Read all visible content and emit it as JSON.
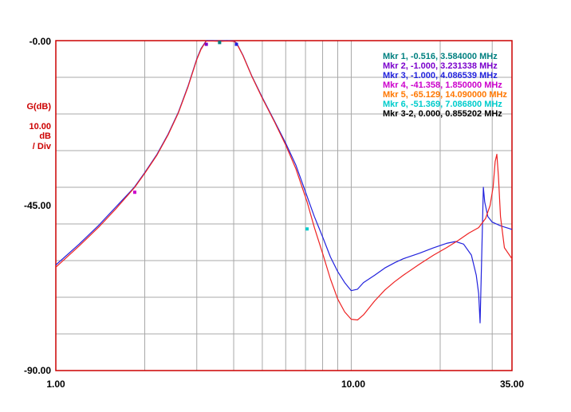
{
  "chart_data": {
    "type": "line",
    "x_scale": "log",
    "xlim": [
      1.0,
      35.0
    ],
    "ylim": [
      -90.0,
      0.0
    ],
    "x_ticks": [
      "1.00",
      "10.00",
      "35.00"
    ],
    "y_ticks": [
      "-0.00",
      "-45.00",
      "-90.00"
    ],
    "ylabel_lines": [
      "G(dB)",
      "10.00",
      "dB",
      "/ Div"
    ],
    "grid": true,
    "axis_color": "#cc0000",
    "series": [
      {
        "color": "#2222dd",
        "points": [
          [
            1.0,
            -61.2
          ],
          [
            1.2,
            -55.5
          ],
          [
            1.4,
            -50.3
          ],
          [
            1.6,
            -45.3
          ],
          [
            1.8,
            -40.9
          ],
          [
            1.85,
            -39.8
          ],
          [
            2.0,
            -36.0
          ],
          [
            2.2,
            -31.0
          ],
          [
            2.4,
            -25.5
          ],
          [
            2.6,
            -19.5
          ],
          [
            2.8,
            -12.5
          ],
          [
            3.0,
            -5.0
          ],
          [
            3.1,
            -2.2
          ],
          [
            3.2,
            -0.5
          ],
          [
            3.23,
            0.0
          ],
          [
            3.4,
            0.0
          ],
          [
            3.58,
            -0.1
          ],
          [
            3.8,
            0.0
          ],
          [
            4.0,
            -0.1
          ],
          [
            4.09,
            -0.6
          ],
          [
            4.3,
            -4.0
          ],
          [
            4.6,
            -9.5
          ],
          [
            5.0,
            -15.5
          ],
          [
            5.5,
            -22.0
          ],
          [
            6.0,
            -28.0
          ],
          [
            6.5,
            -34.0
          ],
          [
            7.09,
            -42.5
          ],
          [
            7.5,
            -48.0
          ],
          [
            8.0,
            -53.5
          ],
          [
            8.5,
            -59.0
          ],
          [
            9.0,
            -63.0
          ],
          [
            9.5,
            -66.0
          ],
          [
            10.0,
            -68.2
          ],
          [
            10.5,
            -67.8
          ],
          [
            11.0,
            -66.0
          ],
          [
            12.0,
            -64.0
          ],
          [
            13.0,
            -62.0
          ],
          [
            14.09,
            -60.5
          ],
          [
            15.0,
            -59.5
          ],
          [
            17.0,
            -58.0
          ],
          [
            19.0,
            -56.5
          ],
          [
            21.0,
            -55.3
          ],
          [
            22.5,
            -54.8
          ],
          [
            24.0,
            -55.5
          ],
          [
            25.5,
            -58.5
          ],
          [
            26.5,
            -64.0
          ],
          [
            27.0,
            -69.0
          ],
          [
            27.3,
            -77.0
          ],
          [
            27.6,
            -61.0
          ],
          [
            28.0,
            -40.0
          ],
          [
            28.3,
            -44.0
          ],
          [
            29.0,
            -48.0
          ],
          [
            30.0,
            -49.5
          ],
          [
            32.0,
            -50.5
          ],
          [
            35.0,
            -51.5
          ]
        ]
      },
      {
        "color": "#ee2222",
        "points": [
          [
            1.0,
            -61.8
          ],
          [
            1.2,
            -56.0
          ],
          [
            1.4,
            -50.8
          ],
          [
            1.6,
            -45.8
          ],
          [
            1.85,
            -40.0
          ],
          [
            2.0,
            -36.2
          ],
          [
            2.2,
            -31.2
          ],
          [
            2.4,
            -25.7
          ],
          [
            2.6,
            -19.7
          ],
          [
            2.8,
            -12.7
          ],
          [
            3.0,
            -5.2
          ],
          [
            3.1,
            -2.4
          ],
          [
            3.2,
            -0.6
          ],
          [
            3.23,
            -0.1
          ],
          [
            3.4,
            -0.1
          ],
          [
            3.6,
            -0.2
          ],
          [
            3.8,
            -0.1
          ],
          [
            4.0,
            -0.2
          ],
          [
            4.09,
            -0.7
          ],
          [
            4.3,
            -4.1
          ],
          [
            4.6,
            -9.6
          ],
          [
            5.0,
            -15.7
          ],
          [
            5.5,
            -22.2
          ],
          [
            6.0,
            -28.5
          ],
          [
            6.5,
            -35.0
          ],
          [
            7.09,
            -44.0
          ],
          [
            7.5,
            -51.0
          ],
          [
            8.0,
            -58.0
          ],
          [
            8.5,
            -65.0
          ],
          [
            9.0,
            -70.5
          ],
          [
            9.5,
            -74.0
          ],
          [
            10.0,
            -76.0
          ],
          [
            10.5,
            -76.2
          ],
          [
            11.0,
            -74.8
          ],
          [
            12.0,
            -71.0
          ],
          [
            13.0,
            -68.0
          ],
          [
            14.0,
            -65.8
          ],
          [
            15.0,
            -64.0
          ],
          [
            17.0,
            -61.0
          ],
          [
            19.0,
            -58.5
          ],
          [
            21.0,
            -56.5
          ],
          [
            23.0,
            -54.5
          ],
          [
            25.0,
            -52.5
          ],
          [
            27.0,
            -51.0
          ],
          [
            28.5,
            -48.5
          ],
          [
            29.5,
            -45.0
          ],
          [
            30.2,
            -40.0
          ],
          [
            30.7,
            -33.0
          ],
          [
            31.1,
            -31.0
          ],
          [
            31.5,
            -37.0
          ],
          [
            32.0,
            -48.0
          ],
          [
            33.0,
            -56.5
          ],
          [
            35.0,
            -59.5
          ]
        ]
      }
    ],
    "marker_points": [
      {
        "x": 3.584,
        "y": -0.516,
        "color": "#008080"
      },
      {
        "x": 3.231338,
        "y": -1.0,
        "color": "#7a00cc"
      },
      {
        "x": 4.086539,
        "y": -1.0,
        "color": "#2222dd"
      },
      {
        "x": 1.85,
        "y": -41.358,
        "color": "#cc00cc"
      },
      {
        "x": 7.0868,
        "y": -51.369,
        "color": "#00cccc"
      }
    ],
    "annotations": [
      {
        "text": "Mkr 1, -0.516, 3.584000 MHz",
        "color": "#008080"
      },
      {
        "text": "Mkr 2, -1.000, 3.231338 MHz",
        "color": "#7a00cc"
      },
      {
        "text": "Mkr 3, -1.000, 4.086539 MHz",
        "color": "#2222dd"
      },
      {
        "text": "Mkr 4, -41.358, 1.850000 MHz",
        "color": "#cc00cc"
      },
      {
        "text": "Mkr 5, -65.129, 14.090000 MHz",
        "color": "#ff7700"
      },
      {
        "text": "Mkr 6, -51.369, 7.086800 MHz",
        "color": "#00cccc"
      },
      {
        "text": "Mkr 3-2, 0.000, 0.855202 MHz",
        "color": "#000000"
      }
    ]
  }
}
